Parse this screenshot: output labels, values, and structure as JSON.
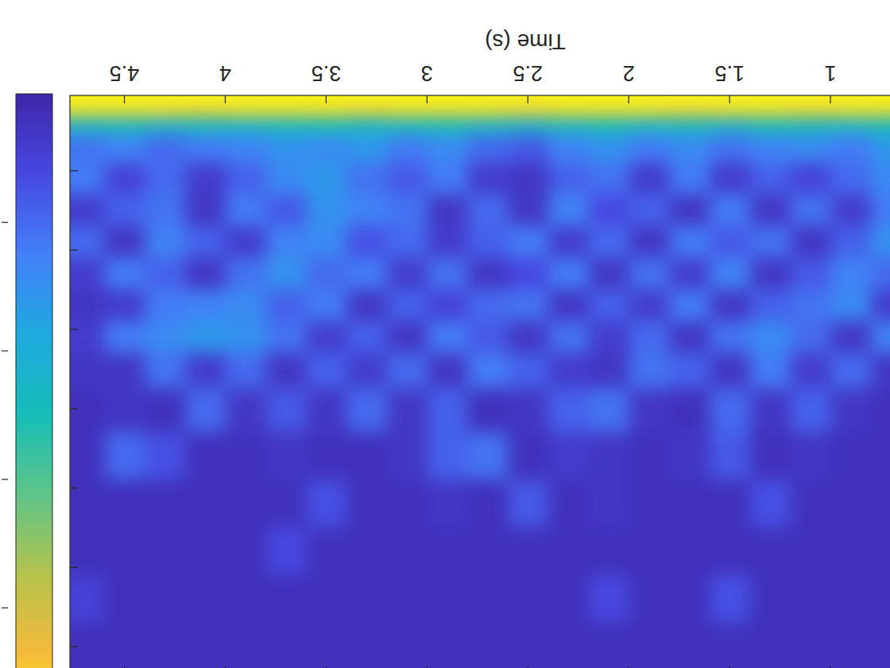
{
  "chart_data": {
    "type": "heatmap",
    "xlabel": "Time (s)",
    "x": [
      0.7,
      0.9,
      1.1,
      1.3,
      1.5,
      1.7,
      1.9,
      2.1,
      2.3,
      2.5,
      2.7,
      2.9,
      3.1,
      3.3,
      3.5,
      3.7,
      3.9,
      4.1,
      4.3,
      4.5,
      4.7
    ],
    "y": [
      1,
      2.5,
      4,
      7,
      11,
      15,
      19,
      23,
      27,
      31,
      35,
      40,
      46,
      52,
      58,
      64,
      70
    ],
    "z": [
      [
        5.0,
        5.0,
        5.0,
        5.0,
        5.0,
        5.0,
        5.0,
        5.0,
        5.0,
        5.0,
        5.0,
        5.0,
        5.0,
        5.0,
        5.0,
        5.0,
        5.0,
        5.0,
        5.0,
        5.0,
        5.0
      ],
      [
        4.6,
        4.6,
        4.5,
        4.6,
        4.6,
        4.5,
        4.6,
        4.6,
        4.6,
        4.5,
        4.6,
        4.6,
        4.6,
        4.5,
        4.6,
        4.6,
        4.6,
        4.5,
        4.6,
        4.6,
        4.6
      ],
      [
        2.5,
        2.3,
        2.4,
        2.5,
        2.2,
        2.4,
        2.3,
        2.5,
        2.4,
        2.2,
        2.3,
        2.5,
        2.4,
        2.3,
        2.5,
        2.4,
        2.3,
        2.4,
        2.2,
        2.4,
        2.3
      ],
      [
        1.6,
        1.2,
        1.4,
        1.3,
        1.1,
        1.4,
        1.2,
        1.5,
        1.3,
        0.8,
        1.0,
        1.4,
        1.2,
        1.6,
        1.4,
        1.5,
        1.3,
        1.2,
        1.0,
        1.3,
        1.1
      ],
      [
        1.4,
        1.0,
        0.5,
        0.9,
        0.4,
        1.2,
        0.4,
        1.1,
        0.9,
        0.3,
        0.4,
        1.2,
        0.8,
        1.1,
        1.6,
        1.4,
        0.9,
        0.4,
        1.0,
        0.5,
        1.2
      ],
      [
        1.2,
        0.4,
        1.1,
        0.3,
        1.2,
        0.3,
        0.9,
        0.6,
        1.3,
        0.3,
        1.0,
        0.3,
        1.1,
        1.3,
        1.5,
        0.8,
        1.2,
        0.3,
        1.1,
        0.9,
        0.4
      ],
      [
        1.5,
        0.9,
        0.3,
        1.1,
        0.8,
        1.2,
        0.3,
        1.0,
        0.4,
        1.2,
        0.9,
        0.4,
        1.0,
        0.7,
        1.4,
        1.3,
        0.4,
        0.9,
        1.3,
        0.3,
        1.0
      ],
      [
        1.0,
        1.3,
        0.8,
        0.3,
        1.3,
        0.4,
        1.1,
        0.3,
        1.2,
        0.6,
        0.3,
        1.1,
        0.4,
        1.2,
        1.0,
        1.5,
        1.1,
        0.3,
        0.9,
        1.2,
        0.4
      ],
      [
        0.4,
        1.4,
        1.1,
        0.9,
        0.3,
        1.2,
        0.4,
        0.9,
        0.3,
        1.1,
        1.0,
        0.5,
        0.9,
        0.3,
        1.2,
        0.9,
        1.4,
        1.3,
        1.2,
        0.4,
        0.3
      ],
      [
        1.3,
        0.3,
        1.0,
        1.4,
        1.1,
        0.3,
        1.0,
        0.4,
        1.1,
        0.3,
        0.8,
        1.2,
        0.3,
        0.9,
        0.4,
        1.1,
        1.5,
        1.6,
        1.4,
        1.2,
        0.4
      ],
      [
        0.3,
        1.0,
        0.4,
        1.2,
        0.3,
        0.9,
        1.1,
        0.3,
        0.4,
        0.9,
        1.2,
        0.3,
        1.0,
        0.4,
        0.9,
        0.3,
        1.0,
        0.4,
        1.1,
        0.3,
        0.3
      ],
      [
        0.2,
        0.3,
        0.9,
        0.3,
        1.0,
        0.2,
        0.3,
        1.1,
        0.9,
        0.3,
        0.2,
        0.9,
        0.3,
        1.0,
        0.3,
        0.8,
        0.3,
        1.0,
        0.2,
        0.3,
        0.2
      ],
      [
        0.2,
        0.2,
        0.3,
        0.2,
        0.8,
        0.3,
        0.2,
        0.3,
        0.4,
        0.2,
        1.1,
        0.9,
        0.3,
        0.2,
        0.2,
        0.3,
        0.2,
        0.2,
        0.7,
        1.0,
        0.2
      ],
      [
        0.2,
        0.2,
        0.2,
        0.7,
        0.2,
        0.2,
        0.2,
        0.3,
        0.2,
        0.8,
        0.2,
        0.3,
        0.2,
        0.2,
        0.7,
        0.2,
        0.2,
        0.2,
        0.2,
        0.2,
        0.2
      ],
      [
        0.2,
        0.2,
        0.2,
        0.2,
        0.2,
        0.2,
        0.2,
        0.2,
        0.2,
        0.2,
        0.2,
        0.2,
        0.2,
        0.2,
        0.2,
        0.6,
        0.2,
        0.2,
        0.2,
        0.2,
        0.2
      ],
      [
        0.2,
        0.2,
        0.2,
        0.2,
        0.7,
        0.2,
        0.2,
        0.6,
        0.2,
        0.2,
        0.2,
        0.2,
        0.2,
        0.2,
        0.2,
        0.2,
        0.2,
        0.2,
        0.2,
        0.2,
        0.5
      ],
      [
        0.2,
        0.2,
        0.2,
        0.2,
        0.2,
        0.2,
        0.2,
        0.2,
        0.2,
        0.2,
        0.2,
        0.2,
        0.2,
        0.2,
        0.2,
        0.2,
        0.2,
        0.2,
        0.2,
        0.2,
        0.2
      ]
    ],
    "xlim": [
      0.6,
      4.77
    ],
    "ylim": [
      0.5,
      73.5
    ],
    "xticks": [
      1,
      1.5,
      2,
      2.5,
      3,
      3.5,
      4,
      4.5
    ],
    "yticks": [
      10,
      20,
      30,
      40,
      50,
      60,
      70
    ],
    "tick_labels": "x",
    "clim": [
      0,
      5
    ],
    "cticks": [
      1,
      2,
      3,
      4
    ]
  }
}
